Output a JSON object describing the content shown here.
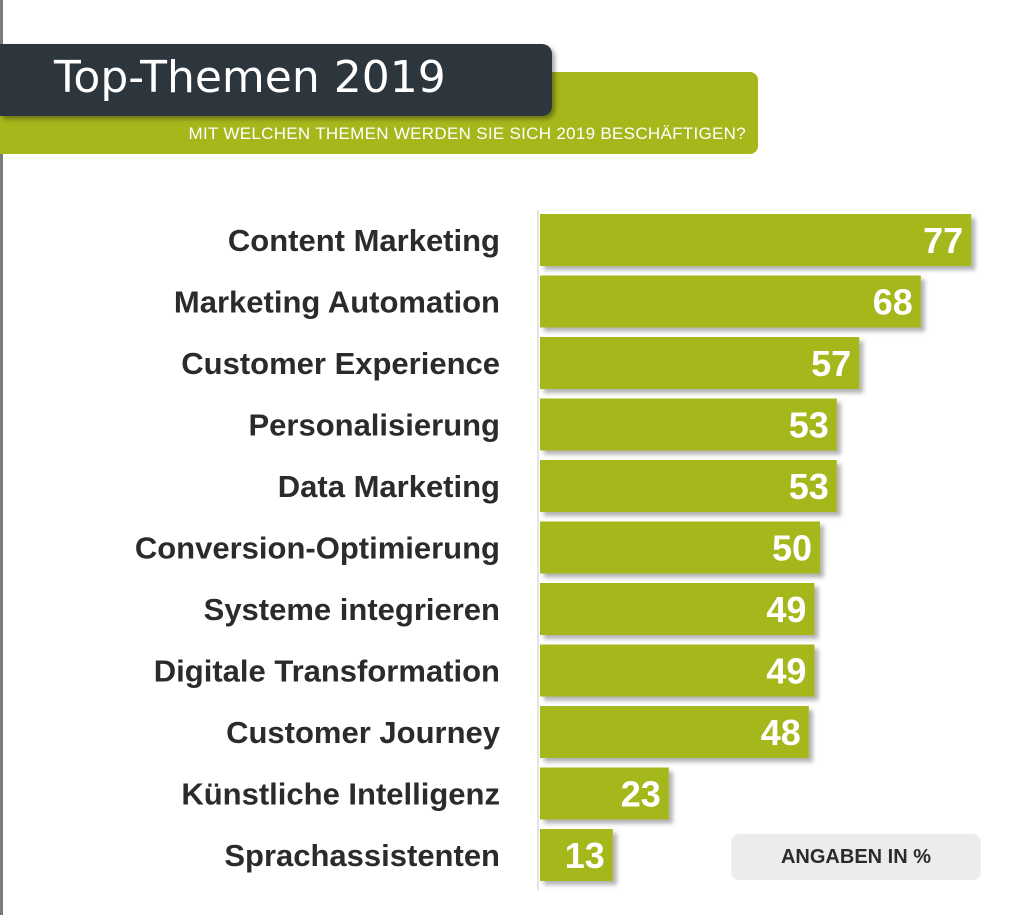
{
  "header": {
    "title": "Top-Themen 2019",
    "subtitle": "MIT WELCHEN THEMEN WERDEN SIE SICH 2019 BESCHÄFTIGEN?"
  },
  "footnote": "ANGABEN IN %",
  "colors": {
    "bar": "#a6b71c",
    "title_box": "#2e363d",
    "label_text": "#2b2b2b",
    "value_text": "#ffffff"
  },
  "chart_data": {
    "type": "bar",
    "orientation": "horizontal",
    "title": "Top-Themen 2019",
    "subtitle": "MIT WELCHEN THEMEN WERDEN SIE SICH 2019 BESCHÄFTIGEN?",
    "xlabel": "",
    "ylabel": "",
    "unit_note": "ANGABEN IN %",
    "xlim": [
      0,
      80
    ],
    "grid": false,
    "legend": "none",
    "categories": [
      "Content Marketing",
      "Marketing Automation",
      "Customer Experience",
      "Personalisierung",
      "Data Marketing",
      "Conversion-Optimierung",
      "Systeme integrieren",
      "Digitale Transformation",
      "Customer Journey",
      "Künstliche Intelligenz",
      "Sprachassistenten"
    ],
    "values": [
      77,
      68,
      57,
      53,
      53,
      50,
      49,
      49,
      48,
      23,
      13
    ]
  }
}
